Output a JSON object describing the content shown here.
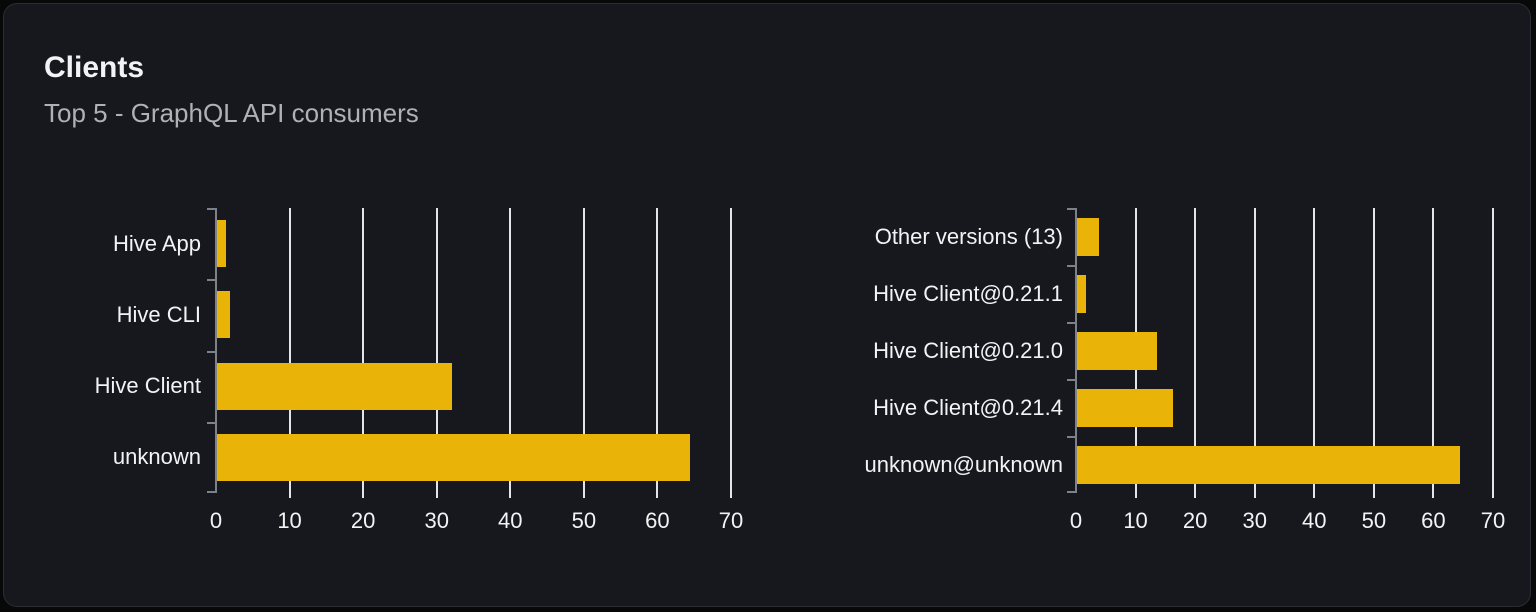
{
  "card": {
    "title": "Clients",
    "subtitle": "Top 5 - GraphQL API consumers"
  },
  "colors": {
    "page_bg": "#080808",
    "card_bg": "#16181d",
    "card_border": "#2a2d33",
    "bar": "#eab308",
    "gridline": "#e2e5e9",
    "axis": "#7d828a",
    "text_primary": "#f2f3f5",
    "text_secondary": "#aeb1b6"
  },
  "chart_data": [
    {
      "type": "bar",
      "orientation": "horizontal",
      "categories": [
        "Hive App",
        "Hive CLI",
        "Hive Client",
        "unknown"
      ],
      "values": [
        1.4,
        1.9,
        32.1,
        64.4
      ],
      "xlim": [
        0,
        70
      ],
      "xticks": [
        0,
        10,
        20,
        30,
        40,
        50,
        60,
        70
      ],
      "grid": true,
      "legend": "none",
      "bar_color": "#eab308"
    },
    {
      "type": "bar",
      "orientation": "horizontal",
      "categories": [
        "Other versions (13)",
        "Hive Client@0.21.1",
        "Hive Client@0.21.0",
        "Hive Client@0.21.4",
        "unknown@unknown"
      ],
      "values": [
        3.8,
        1.7,
        13.6,
        16.3,
        64.4
      ],
      "xlim": [
        0,
        70
      ],
      "xticks": [
        0,
        10,
        20,
        30,
        40,
        50,
        60,
        70
      ],
      "grid": true,
      "legend": "none",
      "bar_color": "#eab308"
    }
  ]
}
